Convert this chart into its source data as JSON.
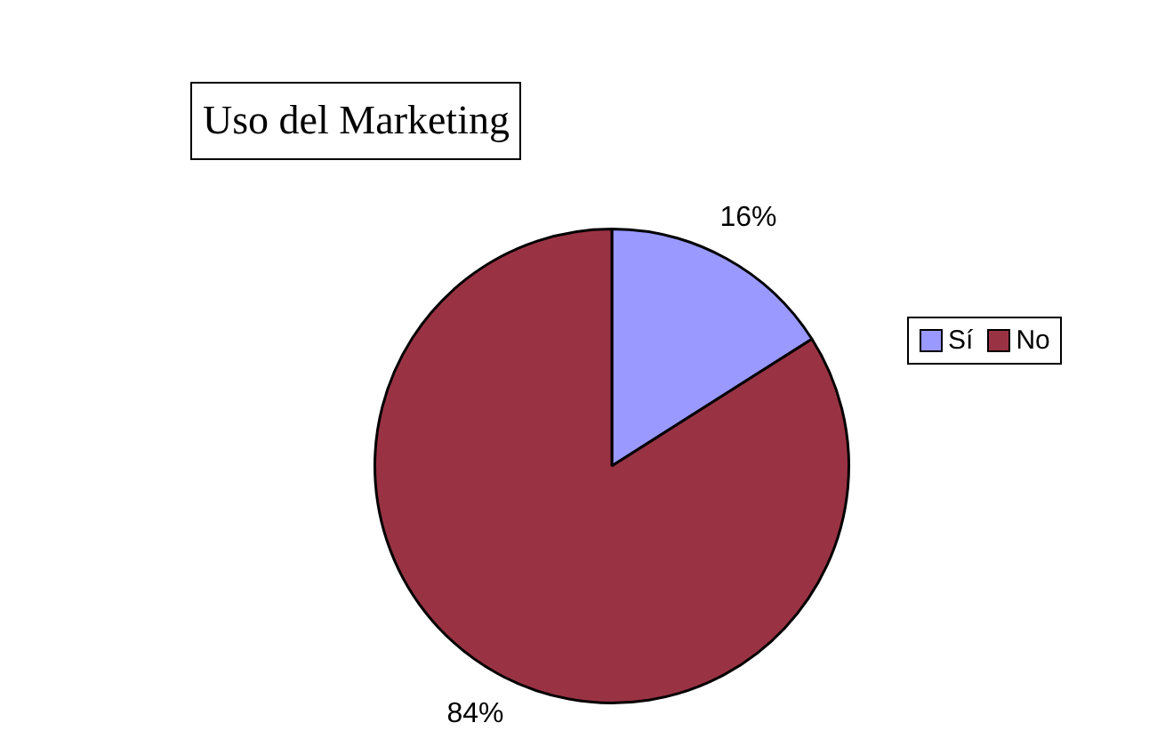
{
  "chart_data": {
    "type": "pie",
    "title": "Uso del Marketing",
    "categories": [
      "Sí",
      "No"
    ],
    "values": [
      16,
      84
    ],
    "colors": [
      "#9999ff",
      "#993344"
    ],
    "legend": "right",
    "value_labels": [
      "16%",
      "84%"
    ]
  }
}
